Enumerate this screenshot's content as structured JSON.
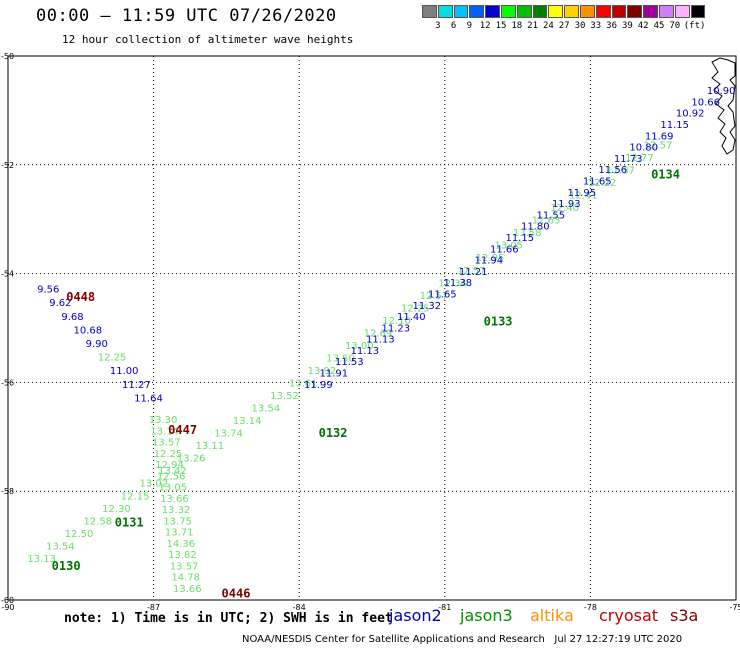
{
  "header": {
    "title": "00:00 – 11:59 UTC 07/26/2020",
    "subtitle": "12 hour collection of altimeter wave heights"
  },
  "colorbar": {
    "unit_label": "(ft)",
    "entries": [
      {
        "label": "",
        "color": "#808080"
      },
      {
        "label": "3",
        "color": "#00e0e0"
      },
      {
        "label": "6",
        "color": "#00c0ff"
      },
      {
        "label": "9",
        "color": "#0060ff"
      },
      {
        "label": "12",
        "color": "#0000d0"
      },
      {
        "label": "15",
        "color": "#00ff00"
      },
      {
        "label": "18",
        "color": "#00c000"
      },
      {
        "label": "21",
        "color": "#008000"
      },
      {
        "label": "24",
        "color": "#ffff00"
      },
      {
        "label": "27",
        "color": "#ffd000"
      },
      {
        "label": "30",
        "color": "#ff9000"
      },
      {
        "label": "33",
        "color": "#ff0000"
      },
      {
        "label": "36",
        "color": "#c00000"
      },
      {
        "label": "39",
        "color": "#800000"
      },
      {
        "label": "42",
        "color": "#a000a0"
      },
      {
        "label": "45",
        "color": "#d080ff"
      },
      {
        "label": "70",
        "color": "#ffb0ff"
      },
      {
        "label": "",
        "color": "#000000"
      }
    ]
  },
  "map": {
    "lat_ticks": [
      "-50",
      "-52",
      "-54",
      "-56",
      "-58",
      "-60"
    ],
    "lon_ticks": [
      "-90",
      "-87",
      "-84",
      "-81",
      "-78",
      "-75"
    ],
    "lat_range": [
      -60,
      -50
    ],
    "lon_range": [
      -90,
      -75
    ],
    "colors": {
      "jason2": "#0000c8",
      "jason3": "#66e066",
      "time_j3": "#007000",
      "time_c": "#800000"
    },
    "passes": [
      {
        "sat": "jason2",
        "labels": [
          "9.56",
          "9.62",
          "9.68",
          "10.68",
          "9.90",
          "12.25",
          "11.00",
          "11.27",
          "11.64"
        ],
        "start": [
          -89.4,
          -54.35
        ],
        "end": [
          -87.4,
          -56.35
        ],
        "colors": [
          "jason2",
          "jason2",
          "jason2",
          "jason2",
          "jason2",
          "jason3",
          "jason2",
          "jason2",
          "jason2"
        ]
      },
      {
        "sat": "cryosat",
        "labels": [
          "13.30",
          "13.14",
          "13.57",
          "12.25",
          "12.94",
          "12.56",
          "13.05",
          "13.66",
          "13.32",
          "13.75",
          "13.71",
          "14.36",
          "13.82",
          "13.57",
          "14.78",
          "13.66"
        ],
        "start": [
          -87.1,
          -56.75
        ],
        "end": [
          -86.6,
          -59.85
        ],
        "colors": [
          "jason3",
          "jason3",
          "jason3",
          "jason3",
          "jason3",
          "jason3",
          "jason3",
          "jason3",
          "jason3",
          "jason3",
          "jason3",
          "jason3",
          "jason3",
          "jason3",
          "jason3",
          "jason3"
        ]
      },
      {
        "sat": "jason3",
        "labels": [
          "13.13",
          "13.54",
          "12.50",
          "12.58",
          "12.30",
          "12.15",
          "13.02",
          "13.42",
          "13.26",
          "13.11",
          "13.74",
          "13.14",
          "13.54",
          "13.52",
          "13.61",
          "13.92",
          "13.50",
          "13.00",
          "12.69",
          "12.10",
          "12.25",
          "12.57",
          "12.34",
          "12.57",
          "12.95",
          "13.05",
          "13.58",
          "12.63",
          "12.40",
          "12.41",
          "12.22",
          "12.37",
          "12.77",
          "12.57"
        ],
        "start": [
          -89.6,
          -59.3
        ],
        "end": [
          -76.9,
          -51.7
        ],
        "colors": [
          "jason3",
          "jason3",
          "jason3",
          "jason3",
          "jason3",
          "jason3",
          "jason3",
          "jason3",
          "jason3",
          "jason3",
          "jason3",
          "jason3",
          "jason3",
          "jason3",
          "jason3",
          "jason3",
          "jason3",
          "jason3",
          "jason3",
          "jason3",
          "jason3",
          "jason3",
          "jason3",
          "jason3",
          "jason3",
          "jason3",
          "jason3",
          "jason3",
          "jason3",
          "jason3",
          "jason3",
          "jason3",
          "jason3",
          "jason3"
        ]
      },
      {
        "sat": "jason2",
        "labels": [
          "11.99",
          "11.91",
          "11.53",
          "11.13",
          "11.13",
          "11.23",
          "11.40",
          "11.32",
          "11.65",
          "11.38",
          "11.21",
          "11.94",
          "11.66",
          "11.15",
          "11.80",
          "11.55",
          "11.93",
          "11.95",
          "11.65",
          "11.56",
          "11.73",
          "10.80",
          "11.69",
          "11.15",
          "10.92",
          "10.66",
          "10.90"
        ],
        "start": [
          -83.9,
          -56.1
        ],
        "end": [
          -75.6,
          -50.7
        ],
        "colors": [
          "jason2",
          "jason2",
          "jason2",
          "jason2",
          "jason2",
          "jason2",
          "jason2",
          "jason2",
          "jason2",
          "jason2",
          "jason2",
          "jason2",
          "jason2",
          "jason2",
          "jason2",
          "jason2",
          "jason2",
          "jason2",
          "jason2",
          "jason2",
          "jason2",
          "jason2",
          "jason2",
          "jason2",
          "jason2",
          "jason2",
          "jason2"
        ]
      }
    ],
    "time_labels": [
      {
        "text": "0448",
        "lon": -88.8,
        "lat": -54.5,
        "color": "time_c"
      },
      {
        "text": "0447",
        "lon": -86.7,
        "lat": -56.95,
        "color": "time_c"
      },
      {
        "text": "0446",
        "lon": -85.6,
        "lat": -59.95,
        "color": "time_c"
      },
      {
        "text": "0134",
        "lon": -76.75,
        "lat": -52.25,
        "color": "time_j3"
      },
      {
        "text": "0133",
        "lon": -80.2,
        "lat": -54.95,
        "color": "time_j3"
      },
      {
        "text": "0132",
        "lon": -83.6,
        "lat": -57.0,
        "color": "time_j3"
      },
      {
        "text": "0131",
        "lon": -87.8,
        "lat": -58.65,
        "color": "time_j3"
      },
      {
        "text": "0130",
        "lon": -89.1,
        "lat": -59.45,
        "color": "time_j3"
      }
    ]
  },
  "note": "note: 1) Time is in UTC; 2) SWH is in feet",
  "satellites": [
    {
      "name": "jason2",
      "color": "#0000c8"
    },
    {
      "name": "jason3",
      "color": "#009000"
    },
    {
      "name": "altika",
      "color": "#ff9000"
    },
    {
      "name": "cryosat",
      "color": "#c00000"
    },
    {
      "name": "s3a",
      "color": "#800000"
    }
  ],
  "footer": "NOAA/NESDIS Center for Satellite Applications and Research   Jul 27 12:27:19 UTC 2020"
}
